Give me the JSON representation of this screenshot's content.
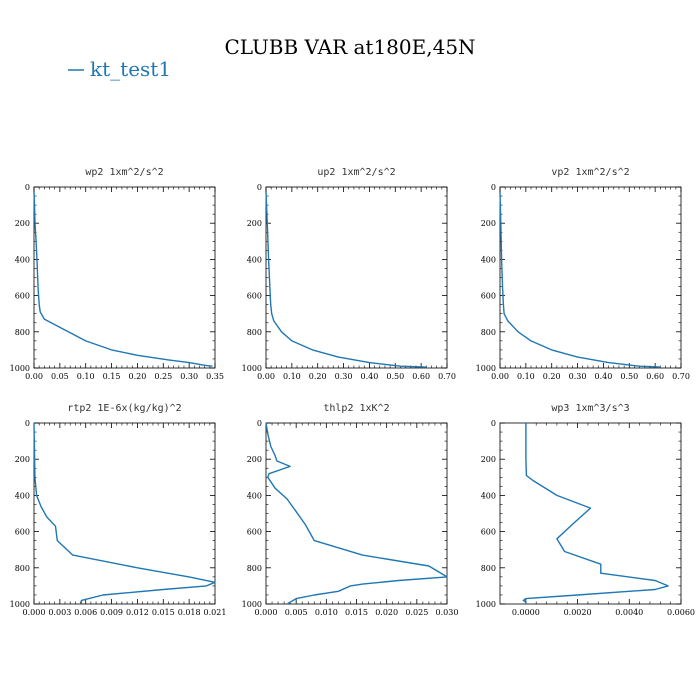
{
  "figure": {
    "title": "CLUBB VAR at180E,45N",
    "legend": [
      {
        "name": "kt_test1",
        "color": "#1f77b4"
      }
    ]
  },
  "chart_data": [
    {
      "type": "line",
      "title": "wp2  1xm^2/s^2",
      "xlim": [
        0,
        0.35
      ],
      "ylim": [
        1000,
        0
      ],
      "xticks": [
        "0.00",
        "0.05",
        "0.10",
        "0.15",
        "0.20",
        "0.25",
        "0.30",
        "0.35"
      ],
      "yticks": [
        "0",
        "200",
        "400",
        "600",
        "800",
        "1000"
      ],
      "series": [
        {
          "name": "kt_test1",
          "color": "#1f77b4",
          "x": [
            0.0,
            0.001,
            0.002,
            0.004,
            0.006,
            0.008,
            0.01,
            0.012,
            0.02,
            0.06,
            0.1,
            0.15,
            0.2,
            0.26,
            0.3,
            0.33,
            0.345
          ],
          "y": [
            30,
            100,
            200,
            300,
            420,
            560,
            650,
            690,
            730,
            790,
            850,
            900,
            930,
            955,
            970,
            985,
            990
          ]
        }
      ]
    },
    {
      "type": "line",
      "title": "up2  1xm^2/s^2",
      "xlim": [
        0,
        0.7
      ],
      "ylim": [
        1000,
        0
      ],
      "xticks": [
        "0.00",
        "0.10",
        "0.20",
        "0.30",
        "0.40",
        "0.50",
        "0.60",
        "0.70"
      ],
      "yticks": [
        "0",
        "200",
        "400",
        "600",
        "800",
        "1000"
      ],
      "series": [
        {
          "name": "kt_test1",
          "color": "#1f77b4",
          "x": [
            0.0,
            0.005,
            0.01,
            0.015,
            0.018,
            0.022,
            0.03,
            0.06,
            0.1,
            0.18,
            0.28,
            0.4,
            0.52,
            0.62
          ],
          "y": [
            30,
            200,
            400,
            560,
            650,
            700,
            740,
            800,
            850,
            900,
            940,
            970,
            990,
            995
          ]
        }
      ]
    },
    {
      "type": "line",
      "title": "vp2  1xm^2/s^2",
      "xlim": [
        0,
        0.7
      ],
      "ylim": [
        1000,
        0
      ],
      "xticks": [
        "0.00",
        "0.10",
        "0.20",
        "0.30",
        "0.40",
        "0.50",
        "0.60",
        "0.70"
      ],
      "yticks": [
        "0",
        "200",
        "400",
        "600",
        "800",
        "1000"
      ],
      "series": [
        {
          "name": "kt_test1",
          "color": "#1f77b4",
          "x": [
            0.0,
            0.003,
            0.006,
            0.01,
            0.013,
            0.016,
            0.03,
            0.07,
            0.12,
            0.2,
            0.3,
            0.42,
            0.54,
            0.62
          ],
          "y": [
            30,
            200,
            400,
            560,
            650,
            700,
            740,
            800,
            850,
            900,
            940,
            970,
            990,
            995
          ]
        }
      ]
    },
    {
      "type": "line",
      "title": "rtp2  1E-6x(kg/kg)^2",
      "xlim": [
        0,
        0.021
      ],
      "ylim": [
        1000,
        0
      ],
      "xticks": [
        "0.000",
        "0.003",
        "0.006",
        "0.009",
        "0.012",
        "0.015",
        "0.018",
        "0.021"
      ],
      "yticks": [
        "0",
        "200",
        "400",
        "600",
        "800",
        "1000"
      ],
      "series": [
        {
          "name": "kt_test1",
          "color": "#1f77b4",
          "x": [
            0.0,
            0.0001,
            0.0003,
            0.0008,
            0.0015,
            0.0025,
            0.0027,
            0.0045,
            0.012,
            0.018,
            0.021,
            0.02,
            0.015,
            0.008,
            0.0055,
            0.0055
          ],
          "y": [
            0,
            300,
            400,
            460,
            520,
            570,
            650,
            730,
            800,
            850,
            880,
            900,
            920,
            950,
            980,
            1000
          ]
        }
      ]
    },
    {
      "type": "line",
      "title": "thlp2  1xK^2",
      "xlim": [
        0,
        0.03
      ],
      "ylim": [
        1000,
        0
      ],
      "xticks": [
        "0.000",
        "0.005",
        "0.010",
        "0.015",
        "0.020",
        "0.025",
        "0.030"
      ],
      "yticks": [
        "0",
        "200",
        "400",
        "600",
        "800",
        "1000"
      ],
      "series": [
        {
          "name": "kt_test1",
          "color": "#1f77b4",
          "x": [
            0.0,
            0.0003,
            0.0008,
            0.0015,
            0.0018,
            0.004,
            0.0005,
            0.0003,
            0.0015,
            0.0035,
            0.005,
            0.0065,
            0.008,
            0.016,
            0.027,
            0.03,
            0.022,
            0.016,
            0.014,
            0.012,
            0.008,
            0.005,
            0.004,
            0.0035
          ],
          "y": [
            0,
            60,
            130,
            180,
            210,
            240,
            280,
            300,
            360,
            420,
            490,
            560,
            650,
            730,
            790,
            850,
            870,
            890,
            900,
            930,
            950,
            970,
            990,
            1000
          ]
        }
      ]
    },
    {
      "type": "line",
      "title": "wp3  1xm^3/s^3",
      "xlim": [
        -0.001,
        0.006
      ],
      "ylim": [
        1000,
        0
      ],
      "xticks": [
        "0.0000",
        "0.0020",
        "0.0040",
        "0.0060"
      ],
      "yticks": [
        "0",
        "200",
        "400",
        "600",
        "800",
        "1000"
      ],
      "series": [
        {
          "name": "kt_test1",
          "color": "#1f77b4",
          "x": [
            0.0,
            0.0,
            0.0,
            2e-05,
            0.0003,
            0.0012,
            0.0025,
            0.0018,
            0.0012,
            0.0015,
            0.0029,
            0.0029,
            0.005,
            0.0055,
            0.005,
            0.002,
            0.0,
            -0.0001,
            0.0,
            0.0
          ],
          "y": [
            0,
            100,
            200,
            290,
            320,
            400,
            470,
            560,
            640,
            710,
            780,
            830,
            870,
            900,
            920,
            950,
            970,
            980,
            990,
            1000
          ]
        }
      ]
    }
  ]
}
